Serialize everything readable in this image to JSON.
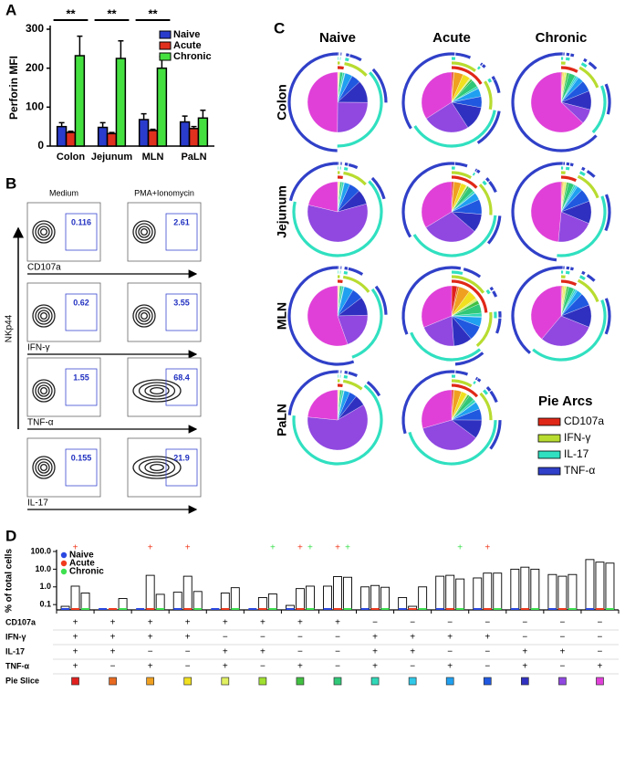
{
  "chart_data": [
    {
      "type": "bar",
      "panel": "A",
      "ylabel": "Perforin MFI",
      "categories": [
        "Colon",
        "Jejunum",
        "MLN",
        "PaLN"
      ],
      "series": [
        {
          "name": "Naive",
          "color": "#2a3ccc",
          "values": [
            50,
            48,
            68,
            62
          ],
          "errors": [
            10,
            12,
            15,
            15
          ]
        },
        {
          "name": "Acute",
          "color": "#e0301e",
          "values": [
            35,
            32,
            40,
            45
          ],
          "errors": [
            3,
            3,
            3,
            5
          ]
        },
        {
          "name": "Chronic",
          "color": "#44e040",
          "values": [
            232,
            225,
            200,
            72
          ],
          "errors": [
            50,
            45,
            30,
            20
          ]
        }
      ],
      "annotations": [
        "**",
        "**",
        "**",
        null
      ],
      "ylim": [
        0,
        300
      ],
      "yticks": [
        0,
        100,
        200,
        300
      ]
    },
    {
      "type": "pie",
      "panel": "C",
      "columns": [
        "Naive",
        "Acute",
        "Chronic"
      ],
      "rows": [
        {
          "name": "Colon",
          "pies": [
            [
              0.1,
              0.1,
              0.2,
              0.5,
              0.1,
              0.1,
              0.2,
              1.5,
              1,
              0.3,
              4,
              5,
              12,
              25,
              49.9
            ],
            [
              1,
              0.3,
              5,
              4,
              0.5,
              0.3,
              1,
              4,
              1.2,
              0.1,
              4.5,
              6,
              13,
              25,
              34.1
            ],
            [
              0.5,
              0.2,
              0.4,
              0.6,
              1,
              0.4,
              1.1,
              3.5,
              1,
              1,
              3,
              6,
              10,
              8,
              62.3
            ]
          ]
        },
        {
          "name": "Jejunum",
          "pies": [
            [
              0.1,
              0.1,
              0.2,
              0.5,
              0.2,
              0.1,
              0.2,
              1,
              1,
              0.3,
              3,
              6,
              8,
              58,
              21.3
            ],
            [
              1,
              0.2,
              4,
              3,
              0.4,
              0.2,
              1,
              3,
              1.2,
              0.3,
              4,
              8,
              10,
              30,
              33.7
            ],
            [
              0.5,
              0.2,
              0.5,
              0.5,
              1,
              0.3,
              1,
              3,
              1,
              1,
              3,
              7,
              12,
              20,
              48
            ]
          ]
        },
        {
          "name": "MLN",
          "pies": [
            [
              0.1,
              0.1,
              0.2,
              0.5,
              0.1,
              0.1,
              0.2,
              1,
              1,
              0.3,
              5,
              6,
              10,
              20,
              55.4
            ],
            [
              3,
              1,
              6,
              5,
              1,
              0.5,
              2,
              5,
              2,
              0.3,
              5,
              8,
              10,
              20,
              31.2
            ],
            [
              0.5,
              0.2,
              0.4,
              0.6,
              1,
              0.4,
              1,
              3,
              1,
              1,
              3,
              7,
              12,
              30,
              38.9
            ]
          ]
        },
        {
          "name": "PaLN",
          "pies": [
            [
              0.1,
              0.1,
              0.2,
              0.5,
              0.1,
              0.1,
              0.2,
              1,
              1,
              0.3,
              3,
              4,
              6,
              60,
              23.4
            ],
            [
              1,
              0.3,
              4,
              3,
              0.5,
              0.2,
              1,
              3,
              1.5,
              0.3,
              4,
              6,
              10,
              35,
              29.2
            ]
          ]
        }
      ],
      "legend_title": "Pie Arcs",
      "arcs": [
        {
          "name": "CD107a",
          "color": "#e02818"
        },
        {
          "name": "IFN-γ",
          "color": "#b8dc30"
        },
        {
          "name": "IL-17",
          "color": "#30e0c0"
        },
        {
          "name": "TNF-α",
          "color": "#3040c8"
        }
      ]
    },
    {
      "type": "bar_log",
      "panel": "D",
      "ylabel": "% of total cells",
      "ylim": [
        0.05,
        100
      ],
      "log": true,
      "yticks": [
        {
          "value": 0.1,
          "label": "0.1"
        },
        {
          "value": 1,
          "label": "1.0"
        },
        {
          "value": 10,
          "label": "10.0"
        },
        {
          "value": 100,
          "label": "100.0"
        }
      ],
      "sig_label": "+",
      "series": [
        {
          "name": "Naive",
          "color": "#2a48e0",
          "values": [
            0.08,
            0.05,
            0.05,
            0.5,
            0.05,
            0.05,
            0.09,
            1.1,
            1.0,
            0.25,
            4.0,
            3.2,
            10,
            5,
            35
          ],
          "significant": [
            false,
            false,
            false,
            false,
            false,
            false,
            false,
            false,
            false,
            false,
            false,
            false,
            false,
            false,
            false
          ]
        },
        {
          "name": "Acute",
          "color": "#f03a1e",
          "values": [
            1.1,
            0.05,
            4.5,
            4.0,
            0.45,
            0.25,
            0.8,
            3.8,
            1.2,
            0.08,
            4.5,
            6.0,
            13,
            4,
            25
          ],
          "significant": [
            true,
            false,
            true,
            true,
            false,
            false,
            true,
            true,
            false,
            false,
            false,
            true,
            false,
            false,
            false
          ]
        },
        {
          "name": "Chronic",
          "color": "#3ee050",
          "values": [
            0.45,
            0.22,
            0.38,
            0.55,
            0.9,
            0.4,
            1.1,
            3.5,
            0.95,
            1.0,
            2.8,
            6.0,
            10,
            5,
            22
          ],
          "significant": [
            false,
            false,
            false,
            false,
            false,
            true,
            true,
            true,
            false,
            false,
            true,
            false,
            false,
            false,
            false
          ]
        }
      ],
      "table_rows": [
        {
          "name": "CD107a",
          "signs": [
            "+",
            "+",
            "+",
            "+",
            "+",
            "+",
            "+",
            "+",
            "−",
            "−",
            "−",
            "−",
            "−",
            "−",
            "−"
          ]
        },
        {
          "name": "IFN-γ",
          "signs": [
            "+",
            "+",
            "+",
            "+",
            "−",
            "−",
            "−",
            "−",
            "+",
            "+",
            "+",
            "+",
            "−",
            "−",
            "−"
          ]
        },
        {
          "name": "IL-17",
          "signs": [
            "+",
            "+",
            "−",
            "−",
            "+",
            "+",
            "−",
            "−",
            "+",
            "+",
            "−",
            "−",
            "+",
            "+",
            "−"
          ]
        },
        {
          "name": "TNF-α",
          "signs": [
            "+",
            "−",
            "+",
            "−",
            "+",
            "−",
            "+",
            "−",
            "+",
            "−",
            "+",
            "−",
            "+",
            "−",
            "+"
          ]
        }
      ],
      "slice_row_label": "Pie Slice",
      "pie_slice_colors": [
        "#e0201e",
        "#e86a20",
        "#f0a020",
        "#f0e020",
        "#e0f060",
        "#a0e030",
        "#40c040",
        "#30c878",
        "#30d8b8",
        "#30c8e8",
        "#20a0f0",
        "#2058e0",
        "#3030c0",
        "#9048e0",
        "#e040d8"
      ]
    }
  ],
  "flow_panel": {
    "panel": "B",
    "columns": [
      "Medium",
      "PMA+Ionomycin"
    ],
    "y_label": "NKp44",
    "rows": [
      {
        "marker": "CD107a",
        "values": [
          0.116,
          2.61
        ]
      },
      {
        "marker": "IFN-γ",
        "values": [
          0.62,
          3.55
        ]
      },
      {
        "marker": "TNF-α",
        "values": [
          1.55,
          68.4
        ]
      },
      {
        "marker": "IL-17",
        "values": [
          0.155,
          21.9
        ]
      }
    ]
  }
}
